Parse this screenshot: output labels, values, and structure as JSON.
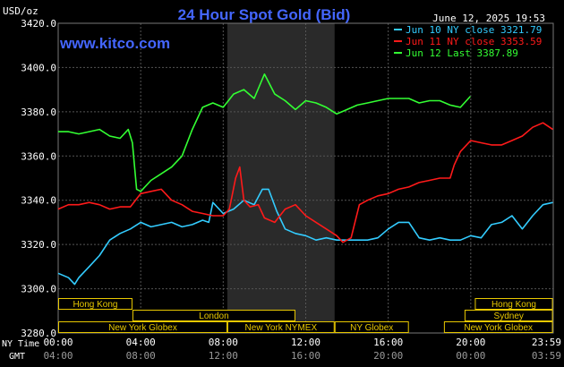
{
  "header": {
    "title": "24 Hour Spot Gold (Bid)",
    "unit": "USD/oz",
    "website": "www.kitco.com",
    "timestamp": "June 12, 2025 19:53"
  },
  "colors": {
    "title": "#4466ff",
    "website": "#4466ff",
    "axis_text": "#ffffff",
    "grid": "#555555",
    "shade": "#2a2a2a",
    "band_border": "#e8c800",
    "jun10": "#33ccff",
    "jun11": "#ff1a1a",
    "jun12": "#33ff33"
  },
  "chart_data": {
    "type": "line",
    "title": "24 Hour Spot Gold (Bid)",
    "ylabel": "USD/oz",
    "ylim": [
      3280,
      3420
    ],
    "yticks": [
      "3420.0",
      "3400.0",
      "3380.0",
      "3360.0",
      "3340.0",
      "3320.0",
      "3300.0",
      "3280.0"
    ],
    "xlim": [
      0,
      24
    ],
    "xticks_ny": [
      "00:00",
      "04:00",
      "08:00",
      "12:00",
      "16:00",
      "20:00",
      "23:59"
    ],
    "xticks_gmt": [
      "04:00",
      "08:00",
      "12:00",
      "16:00",
      "20:00",
      "00:00",
      "03:59"
    ],
    "xaxis_label_ny": "NY Time",
    "xaxis_label_gmt": "GMT",
    "grid": true,
    "legend_position": "top-right",
    "shaded_session_hours": [
      8.2,
      13.4
    ],
    "series": [
      {
        "name": "Jun 10 NY close 3321.79",
        "color_key": "jun10",
        "x": [
          0,
          0.5,
          0.8,
          1.0,
          1.5,
          2.0,
          2.5,
          3.0,
          3.5,
          4.0,
          4.5,
          5.0,
          5.5,
          6.0,
          6.5,
          7.0,
          7.3,
          7.5,
          8.0,
          8.5,
          9.0,
          9.5,
          9.9,
          10.2,
          10.6,
          11.0,
          11.5,
          12.0,
          12.5,
          13.0,
          13.5,
          14.0,
          14.5,
          15.0,
          15.5,
          16.0,
          16.5,
          17.0,
          17.5,
          18.0,
          18.5,
          19.0,
          19.5,
          20.0,
          20.5,
          21.0,
          21.5,
          22.0,
          22.5,
          23.0,
          23.5,
          23.98
        ],
        "y": [
          3307,
          3305,
          3302,
          3305,
          3310,
          3315,
          3322,
          3325,
          3327,
          3330,
          3328,
          3329,
          3330,
          3328,
          3329,
          3331,
          3330,
          3339,
          3334,
          3336,
          3340,
          3338,
          3345,
          3345,
          3335,
          3327,
          3325,
          3324,
          3322,
          3323,
          3322,
          3322,
          3322,
          3322,
          3323,
          3327,
          3330,
          3330,
          3323,
          3322,
          3323,
          3322,
          3322,
          3324,
          3323,
          3329,
          3330,
          3333,
          3327,
          3333,
          3338,
          3339
        ]
      },
      {
        "name": "Jun 11 NY close 3353.59",
        "color_key": "jun11",
        "x": [
          0,
          0.5,
          1.0,
          1.5,
          2.0,
          2.5,
          3.0,
          3.5,
          4.0,
          4.5,
          5.0,
          5.5,
          6.0,
          6.5,
          7.0,
          7.5,
          8.0,
          8.3,
          8.6,
          8.8,
          9.0,
          9.3,
          9.7,
          10.0,
          10.5,
          11.0,
          11.5,
          12.0,
          12.5,
          13.0,
          13.5,
          13.8,
          14.2,
          14.6,
          15.0,
          15.5,
          16.0,
          16.5,
          17.0,
          17.5,
          18.0,
          18.5,
          19.0,
          19.2,
          19.5,
          20.0,
          20.5,
          21.0,
          21.5,
          22.0,
          22.5,
          23.0,
          23.5,
          23.98
        ],
        "y": [
          3336,
          3338,
          3338,
          3339,
          3338,
          3336,
          3337,
          3337,
          3343,
          3344,
          3345,
          3340,
          3338,
          3335,
          3334,
          3333,
          3333,
          3336,
          3350,
          3355,
          3340,
          3337,
          3338,
          3332,
          3330,
          3336,
          3338,
          3333,
          3330,
          3327,
          3324,
          3321,
          3323,
          3338,
          3340,
          3342,
          3343,
          3345,
          3346,
          3348,
          3349,
          3350,
          3350,
          3356,
          3362,
          3367,
          3366,
          3365,
          3365,
          3367,
          3369,
          3373,
          3375,
          3372
        ]
      },
      {
        "name": "Jun 12 Last 3387.89",
        "color_key": "jun12",
        "x": [
          0,
          0.5,
          1.0,
          1.5,
          2.0,
          2.5,
          3.0,
          3.4,
          3.6,
          3.8,
          4.0,
          4.5,
          5.0,
          5.5,
          6.0,
          6.5,
          7.0,
          7.5,
          8.0,
          8.5,
          9.0,
          9.5,
          10.0,
          10.5,
          11.0,
          11.5,
          12.0,
          12.5,
          13.0,
          13.5,
          14.0,
          14.5,
          15.0,
          15.5,
          16.0,
          16.5,
          17.0,
          17.5,
          18.0,
          18.5,
          19.0,
          19.5,
          19.98
        ],
        "y": [
          3371,
          3371,
          3370,
          3371,
          3372,
          3369,
          3368,
          3372,
          3366,
          3345,
          3344,
          3349,
          3352,
          3355,
          3360,
          3372,
          3382,
          3384,
          3382,
          3388,
          3390,
          3386,
          3397,
          3388,
          3385,
          3381,
          3385,
          3384,
          3382,
          3379,
          3381,
          3383,
          3384,
          3385,
          3386,
          3386,
          3386,
          3384,
          3385,
          3385,
          3383,
          3382,
          3387
        ]
      }
    ]
  },
  "market_bands": [
    {
      "label": "Hong Kong",
      "start_h": 0,
      "end_h": 3.6,
      "row": 0
    },
    {
      "label": "Hong Kong",
      "start_h": 20.2,
      "end_h": 23.98,
      "row": 0
    },
    {
      "label": "London",
      "start_h": 3.6,
      "end_h": 11.5,
      "row": 1
    },
    {
      "label": "Sydney",
      "start_h": 19.7,
      "end_h": 23.98,
      "row": 1
    },
    {
      "label": "New York Globex",
      "start_h": 0,
      "end_h": 8.2,
      "row": 2
    },
    {
      "label": "New York NYMEX",
      "start_h": 8.2,
      "end_h": 13.4,
      "row": 2
    },
    {
      "label": "NY Globex",
      "start_h": 13.4,
      "end_h": 17.0,
      "row": 2
    },
    {
      "label": "New York Globex",
      "start_h": 18.7,
      "end_h": 23.98,
      "row": 2
    }
  ]
}
